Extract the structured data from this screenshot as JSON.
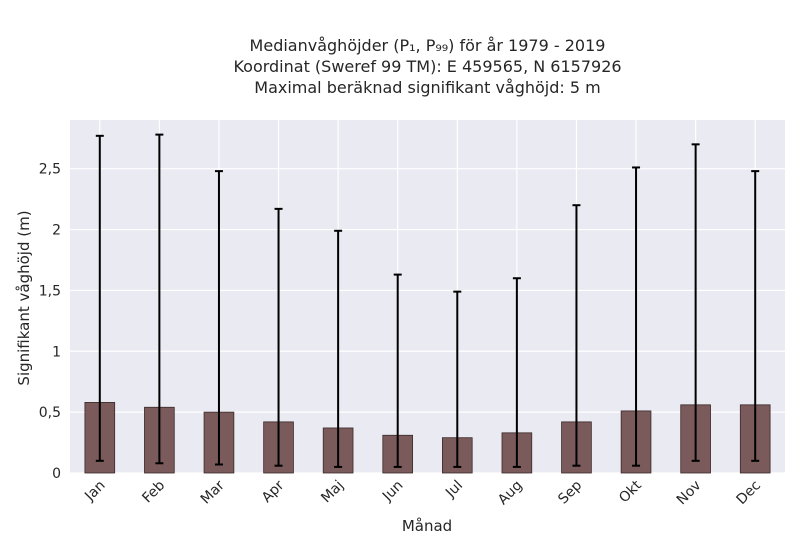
{
  "title_lines": [
    "Medianvåghöjder (P₁, P₉₉) för år 1979 - 2019",
    "Koordinat (Sweref 99 TM): E 459565, N 6157926",
    "Maximal beräknad signifikant våghöjd: 5 m"
  ],
  "chart_data": {
    "type": "bar",
    "title": "Medianvåghöjder (P₁, P₉₉) för år 1979 - 2019",
    "xlabel": "Månad",
    "ylabel": "Signifikant våghöjd (m)",
    "ylim": [
      0,
      2.9
    ],
    "yticks": [
      0,
      0.5,
      1,
      1.5,
      2,
      2.5
    ],
    "ytick_labels": [
      "0",
      "0,5",
      "1",
      "1,5",
      "2",
      "2,5"
    ],
    "grid": true,
    "categories": [
      "Jan",
      "Feb",
      "Mar",
      "Apr",
      "Maj",
      "Jun",
      "Jul",
      "Aug",
      "Sep",
      "Okt",
      "Nov",
      "Dec"
    ],
    "values": [
      0.58,
      0.54,
      0.5,
      0.42,
      0.37,
      0.31,
      0.29,
      0.33,
      0.42,
      0.51,
      0.56,
      0.56
    ],
    "error_low": [
      0.1,
      0.08,
      0.07,
      0.06,
      0.05,
      0.05,
      0.05,
      0.05,
      0.06,
      0.06,
      0.1,
      0.1
    ],
    "error_high": [
      2.77,
      2.78,
      2.48,
      2.17,
      1.99,
      1.63,
      1.49,
      1.6,
      2.2,
      2.51,
      2.7,
      2.48
    ],
    "colors": {
      "bar": "#7a5a5b",
      "bar_edge": "#3a2a2a",
      "axes_bg": "#eaeaf2",
      "grid": "#ffffff",
      "error": "#000000"
    }
  }
}
